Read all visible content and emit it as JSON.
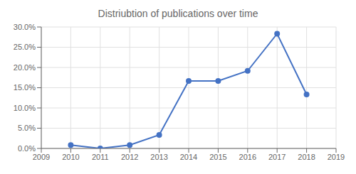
{
  "chart_data": {
    "type": "line",
    "title": "Distriubtion of publications over time",
    "x": [
      2010,
      2011,
      2012,
      2013,
      2014,
      2015,
      2016,
      2017,
      2018
    ],
    "values": [
      0.008333,
      0.0,
      0.008333,
      0.03333,
      0.16667,
      0.16667,
      0.19167,
      0.28333,
      0.13333
    ],
    "xlim": [
      2009,
      2019
    ],
    "ylim": [
      0.0,
      0.3
    ],
    "xticks": [
      2009,
      2010,
      2011,
      2012,
      2013,
      2014,
      2015,
      2016,
      2017,
      2018,
      2019
    ],
    "yticks": [
      {
        "value": 0.0,
        "label": "0.0%"
      },
      {
        "value": 0.05,
        "label": "5.0%"
      },
      {
        "value": 0.1,
        "label": "10.0%"
      },
      {
        "value": 0.15,
        "label": "15.0%"
      },
      {
        "value": 0.2,
        "label": "20.0%"
      },
      {
        "value": 0.25,
        "label": "25.0%"
      },
      {
        "value": 0.3,
        "label": "30.0%"
      }
    ],
    "color": "#4472C4",
    "marker": "circle",
    "grid": true
  }
}
